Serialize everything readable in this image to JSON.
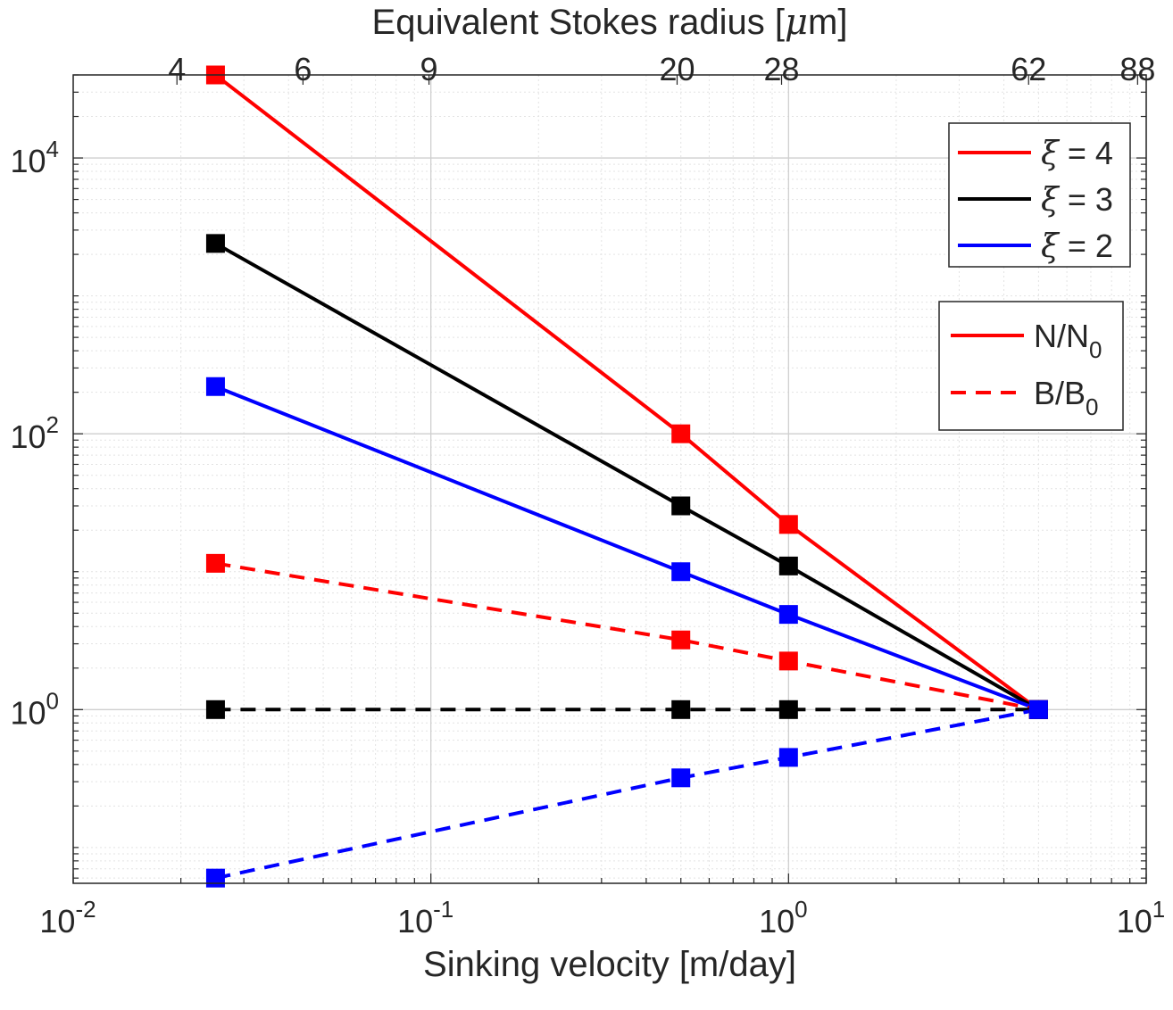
{
  "chart_data": {
    "type": "line",
    "xscale": "log",
    "yscale": "log",
    "xlim": [
      0.01,
      10
    ],
    "ylim": [
      0.055,
      40000
    ],
    "grid": true,
    "xlabel": "Sinking velocity [m/day]",
    "x2label": "Equivalent Stokes radius [",
    "x2label_symbol": "μ",
    "x2label_unit": "m]",
    "x_ticks": [
      {
        "value": 0.01,
        "base": "10",
        "exp": "-2"
      },
      {
        "value": 0.1,
        "base": "10",
        "exp": "-1"
      },
      {
        "value": 1,
        "base": "10",
        "exp": "0"
      },
      {
        "value": 10,
        "base": "10",
        "exp": "1"
      }
    ],
    "y_ticks": [
      {
        "value": 1,
        "base": "10",
        "exp": "0"
      },
      {
        "value": 100,
        "base": "10",
        "exp": "2"
      },
      {
        "value": 10000,
        "base": "10",
        "exp": "4"
      }
    ],
    "x2_ticks": [
      {
        "value": 0.0195,
        "label": "4"
      },
      {
        "value": 0.0439,
        "label": "6"
      },
      {
        "value": 0.0988,
        "label": "9"
      },
      {
        "value": 0.488,
        "label": "20"
      },
      {
        "value": 0.956,
        "label": "28"
      },
      {
        "value": 4.69,
        "label": "62"
      },
      {
        "value": 9.46,
        "label": "88"
      }
    ],
    "x": [
      0.025,
      0.5,
      1,
      5
    ],
    "series": [
      {
        "xi": "4",
        "quantity": "N",
        "color": "#ff0000",
        "dash": false,
        "values": [
          40000,
          100,
          22,
          1
        ]
      },
      {
        "xi": "3",
        "quantity": "N",
        "color": "#000000",
        "dash": false,
        "values": [
          2400,
          30,
          11,
          1
        ]
      },
      {
        "xi": "2",
        "quantity": "N",
        "color": "#0000ff",
        "dash": false,
        "values": [
          220,
          10,
          4.9,
          1
        ]
      },
      {
        "xi": "4",
        "quantity": "B",
        "color": "#ff0000",
        "dash": true,
        "values": [
          11.5,
          3.2,
          2.25,
          1
        ]
      },
      {
        "xi": "3",
        "quantity": "B",
        "color": "#000000",
        "dash": true,
        "values": [
          1,
          1,
          1,
          1
        ]
      },
      {
        "xi": "2",
        "quantity": "B",
        "color": "#0000ff",
        "dash": true,
        "values": [
          0.06,
          0.32,
          0.45,
          1
        ]
      }
    ],
    "legend_xi": {
      "placement": "top-right",
      "symbol": "ξ",
      "entries": [
        {
          "text": " = 4",
          "color": "#ff0000"
        },
        {
          "text": " = 3",
          "color": "#000000"
        },
        {
          "text": " = 2",
          "color": "#0000ff"
        }
      ]
    },
    "legend_style": {
      "placement": "right",
      "entries": [
        {
          "main": "N/N",
          "sub": "0",
          "color": "#ff0000",
          "dash": false
        },
        {
          "main": "B/B",
          "sub": "0",
          "color": "#ff0000",
          "dash": true
        }
      ]
    }
  }
}
